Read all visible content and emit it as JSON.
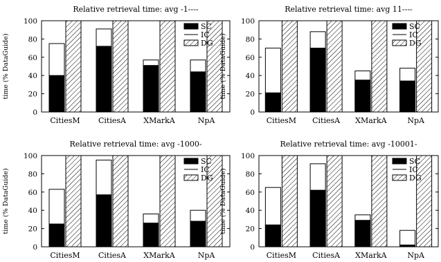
{
  "chart_data": [
    {
      "type": "bar",
      "title": "Relative retrieval time: avg -1----",
      "ylabel": "time (% DataGuide)",
      "xlabel": "",
      "categories": [
        "CitiesM",
        "CitiesA",
        "XMarkA",
        "NpA"
      ],
      "ylim": [
        0,
        100
      ],
      "yticks": [
        0,
        20,
        40,
        60,
        80,
        100
      ],
      "legend": "top-right",
      "series": [
        {
          "name": "SC",
          "values": [
            40,
            72,
            51,
            44
          ]
        },
        {
          "name": "IC",
          "values": [
            75,
            91,
            57,
            57
          ]
        },
        {
          "name": "DG",
          "values": [
            100,
            100,
            100,
            100
          ]
        }
      ]
    },
    {
      "type": "bar",
      "title": "Relative retrieval time: avg 11----",
      "ylabel": "time (% DataGuide)",
      "xlabel": "",
      "categories": [
        "CitiesM",
        "CitiesA",
        "XMarkA",
        "NpA"
      ],
      "ylim": [
        0,
        100
      ],
      "yticks": [
        0,
        20,
        40,
        60,
        80,
        100
      ],
      "legend": "top-right",
      "series": [
        {
          "name": "SC",
          "values": [
            21,
            70,
            35,
            34
          ]
        },
        {
          "name": "IC",
          "values": [
            70,
            88,
            45,
            48
          ]
        },
        {
          "name": "DG",
          "values": [
            100,
            100,
            100,
            100
          ]
        }
      ]
    },
    {
      "type": "bar",
      "title": "Relative retrieval time: avg -1000-",
      "ylabel": "time (% DataGuide)",
      "xlabel": "",
      "categories": [
        "CitiesM",
        "CitiesA",
        "XMarkA",
        "NpA"
      ],
      "ylim": [
        0,
        100
      ],
      "yticks": [
        0,
        20,
        40,
        60,
        80,
        100
      ],
      "legend": "top-right",
      "series": [
        {
          "name": "SC",
          "values": [
            25,
            57,
            26,
            28
          ]
        },
        {
          "name": "IC",
          "values": [
            63,
            95,
            36,
            40
          ]
        },
        {
          "name": "DG",
          "values": [
            100,
            100,
            100,
            100
          ]
        }
      ]
    },
    {
      "type": "bar",
      "title": "Relative retrieval time: avg -10001-",
      "ylabel": "time (% DataGuide)",
      "xlabel": "",
      "categories": [
        "CitiesM",
        "CitiesA",
        "XMarkA",
        "NpA"
      ],
      "ylim": [
        0,
        100
      ],
      "yticks": [
        0,
        20,
        40,
        60,
        80,
        100
      ],
      "legend": "top-right",
      "series": [
        {
          "name": "SC",
          "values": [
            24,
            62,
            29,
            2
          ]
        },
        {
          "name": "IC",
          "values": [
            65,
            91,
            35,
            18
          ]
        },
        {
          "name": "DG",
          "values": [
            100,
            100,
            100,
            100
          ]
        }
      ]
    }
  ]
}
